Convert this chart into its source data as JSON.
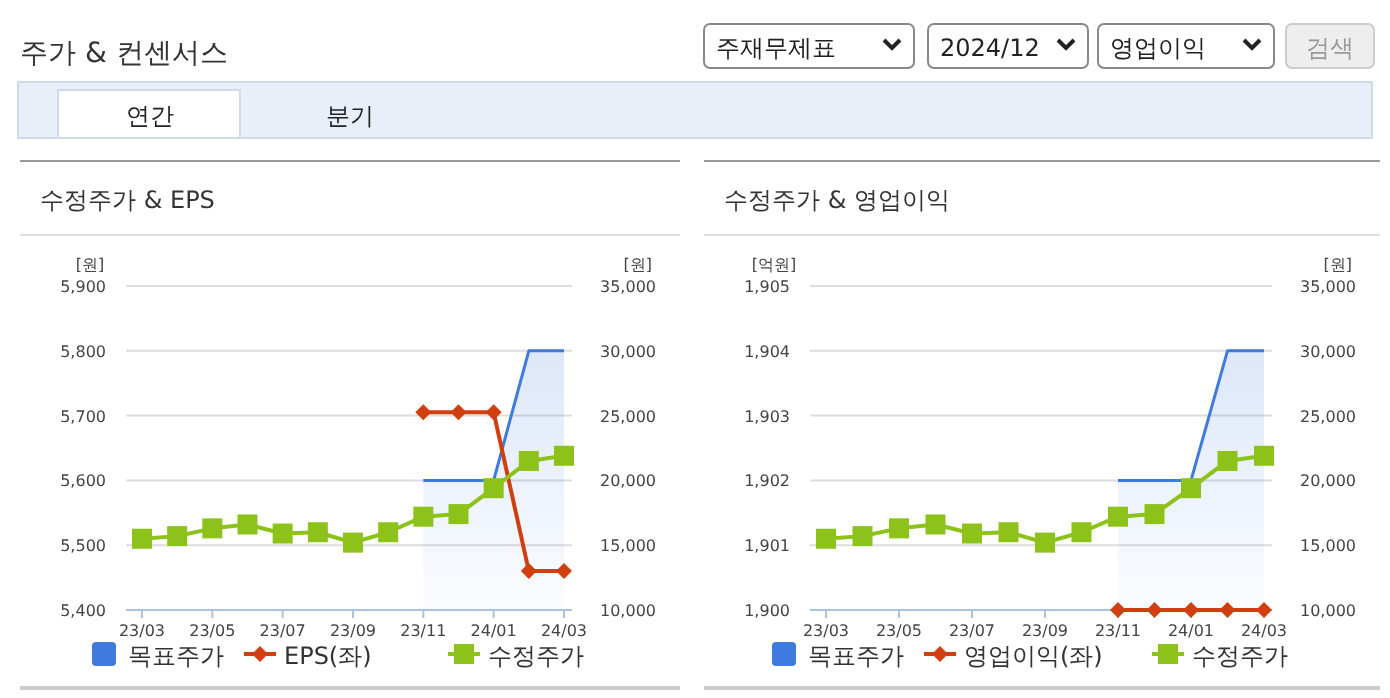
{
  "chart_data": [
    {
      "type": "other",
      "title": "주가 & 컨센서스",
      "annotations": [
        "주재무제표",
        "2024/12",
        "영업이익",
        "검색",
        "연간",
        "분기"
      ]
    },
    {
      "type": "line",
      "title": "수정주가 & EPS",
      "ylabel": "[원]",
      "y2label": "[원]",
      "categories": [
        "23/03",
        null,
        "23/05",
        null,
        "23/07",
        null,
        "23/09",
        null,
        "23/11",
        null,
        "24/01",
        null,
        "24/03"
      ],
      "ylim": [
        5400,
        5900
      ],
      "yticks": [
        {
          "value": 5400,
          "label": "5,400"
        },
        {
          "value": 5500,
          "label": "5,500"
        },
        {
          "value": 5600,
          "label": "5,600"
        },
        {
          "value": 5700,
          "label": "5,700"
        },
        {
          "value": 5800,
          "label": "5,800"
        },
        {
          "value": 5900,
          "label": "5,900"
        }
      ],
      "y2lim": [
        10000,
        35000
      ],
      "y2ticks": [
        {
          "value": 10000,
          "label": "10,000"
        },
        {
          "value": 15000,
          "label": "15,000"
        },
        {
          "value": 20000,
          "label": "20,000"
        },
        {
          "value": 25000,
          "label": "25,000"
        },
        {
          "value": 30000,
          "label": "30,000"
        },
        {
          "value": 35000,
          "label": "35,000"
        }
      ],
      "grid": "y",
      "legend": "bottom",
      "series": [
        {
          "name": "목표주가",
          "type": "area",
          "axis": "y2",
          "color": "#3f7bde",
          "values": [
            null,
            null,
            null,
            null,
            null,
            null,
            null,
            null,
            20000,
            20000,
            20000,
            30000,
            30000
          ]
        },
        {
          "name": "EPS(좌)",
          "type": "line",
          "axis": "y",
          "color": "#d13f10",
          "marker": "diamond",
          "values": [
            null,
            null,
            null,
            null,
            null,
            null,
            null,
            null,
            5705,
            5705,
            5705,
            5460,
            5460
          ]
        },
        {
          "name": "수정주가",
          "type": "line",
          "axis": "y2",
          "color": "#8cc21a",
          "marker": "square",
          "values": [
            15500,
            15700,
            16300,
            16600,
            15900,
            16000,
            15200,
            16000,
            17200,
            17400,
            19400,
            21500,
            21900
          ]
        }
      ]
    },
    {
      "type": "line",
      "title": "수정주가 & 영업이익",
      "ylabel": "[억원]",
      "y2label": "[원]",
      "categories": [
        "23/03",
        null,
        "23/05",
        null,
        "23/07",
        null,
        "23/09",
        null,
        "23/11",
        null,
        "24/01",
        null,
        "24/03"
      ],
      "ylim": [
        1900,
        1905
      ],
      "yticks": [
        {
          "value": 1900,
          "label": "1,900"
        },
        {
          "value": 1901,
          "label": "1,901"
        },
        {
          "value": 1902,
          "label": "1,902"
        },
        {
          "value": 1903,
          "label": "1,903"
        },
        {
          "value": 1904,
          "label": "1,904"
        },
        {
          "value": 1905,
          "label": "1,905"
        }
      ],
      "y2lim": [
        10000,
        35000
      ],
      "y2ticks": [
        {
          "value": 10000,
          "label": "10,000"
        },
        {
          "value": 15000,
          "label": "15,000"
        },
        {
          "value": 20000,
          "label": "20,000"
        },
        {
          "value": 25000,
          "label": "25,000"
        },
        {
          "value": 30000,
          "label": "30,000"
        },
        {
          "value": 35000,
          "label": "35,000"
        }
      ],
      "grid": "y",
      "legend": "bottom",
      "series": [
        {
          "name": "목표주가",
          "type": "area",
          "axis": "y2",
          "color": "#3f7bde",
          "values": [
            null,
            null,
            null,
            null,
            null,
            null,
            null,
            null,
            20000,
            20000,
            20000,
            30000,
            30000
          ]
        },
        {
          "name": "영업이익(좌)",
          "type": "line",
          "axis": "y",
          "color": "#d13f10",
          "marker": "diamond",
          "values": [
            null,
            null,
            null,
            null,
            null,
            null,
            null,
            null,
            1900,
            1900,
            1900,
            1900,
            1900
          ]
        },
        {
          "name": "수정주가",
          "type": "line",
          "axis": "y2",
          "color": "#8cc21a",
          "marker": "square",
          "values": [
            15500,
            15700,
            16300,
            16600,
            15900,
            16000,
            15200,
            16000,
            17200,
            17400,
            19400,
            21500,
            21900
          ]
        }
      ]
    }
  ]
}
